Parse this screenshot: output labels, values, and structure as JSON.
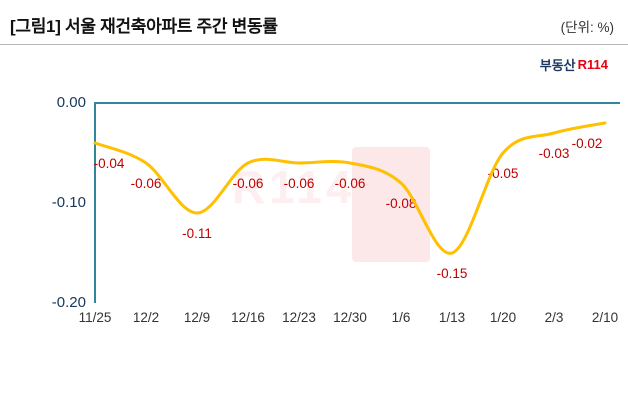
{
  "header": {
    "title": "[그림1] 서울 재건축아파트 주간 변동률",
    "unit": "(단위: %)"
  },
  "logo": {
    "left": "부동산",
    "right": "R114"
  },
  "watermark": "R114",
  "chart_data": {
    "type": "line",
    "title": "서울 재건축아파트 주간 변동률",
    "unit": "%",
    "categories": [
      "11/25",
      "12/2",
      "12/9",
      "12/16",
      "12/23",
      "12/30",
      "1/6",
      "1/13",
      "1/20",
      "2/3",
      "2/10"
    ],
    "values": [
      -0.04,
      -0.06,
      -0.11,
      -0.06,
      -0.06,
      -0.06,
      -0.08,
      -0.15,
      -0.05,
      -0.03,
      -0.02
    ],
    "point_labels": [
      "-0.04",
      "-0.06",
      "-0.11",
      "-0.06",
      "-0.06",
      "-0.06",
      "-0.08",
      "-0.15",
      "-0.05",
      "-0.03",
      "-0.02"
    ],
    "y_ticks": [
      "0.00",
      "-0.10",
      "-0.20"
    ],
    "ylim": [
      -0.2,
      0.0
    ],
    "grid": false,
    "legend": false,
    "line_color": "#FFC000",
    "point_label_color": "#C00000",
    "axis_color": "#31859C"
  }
}
